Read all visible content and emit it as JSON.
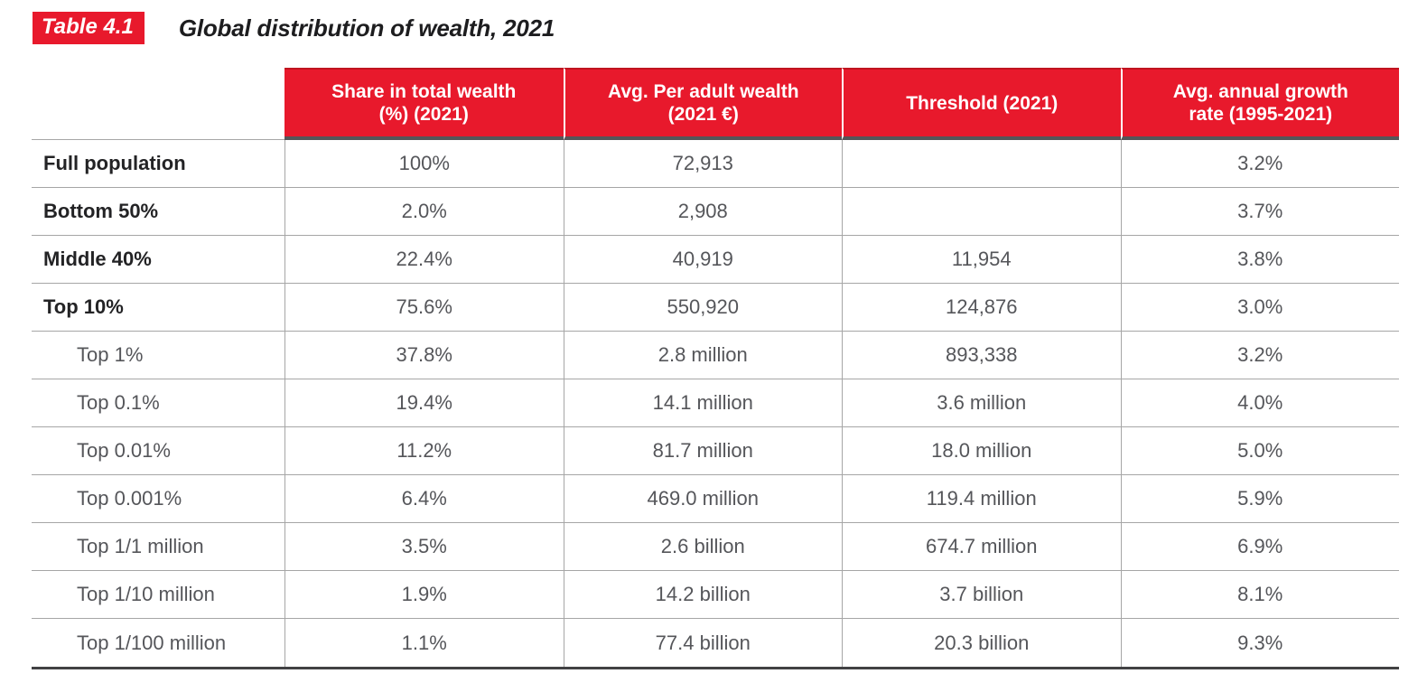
{
  "caption": {
    "badge": "Table 4.1",
    "title": "Global distribution of wealth, 2021"
  },
  "table": {
    "columns": [
      "Share in total wealth\n(%) (2021)",
      "Avg. Per adult wealth\n(2021 €)",
      "Threshold (2021)",
      "Avg. annual growth\nrate (1995-2021)"
    ],
    "rows": [
      {
        "label": "Full population",
        "share": "100%",
        "avg": "72,913",
        "threshold": "",
        "growth": "3.2%"
      },
      {
        "label": "Bottom 50%",
        "share": "2.0%",
        "avg": "2,908",
        "threshold": "",
        "growth": "3.7%"
      },
      {
        "label": "Middle 40%",
        "share": "22.4%",
        "avg": "40,919",
        "threshold": "11,954",
        "growth": "3.8%"
      },
      {
        "label": "Top 10%",
        "share": "75.6%",
        "avg": "550,920",
        "threshold": "124,876",
        "growth": "3.0%"
      },
      {
        "label": "Top 1%",
        "share": "37.8%",
        "avg": "2.8 million",
        "threshold": "893,338",
        "growth": "3.2%"
      },
      {
        "label": "Top 0.1%",
        "share": "19.4%",
        "avg": "14.1 million",
        "threshold": "3.6 million",
        "growth": "4.0%"
      },
      {
        "label": "Top 0.01%",
        "share": "11.2%",
        "avg": "81.7 million",
        "threshold": "18.0 million",
        "growth": "5.0%"
      },
      {
        "label": "Top 0.001%",
        "share": "6.4%",
        "avg": "469.0 million",
        "threshold": "119.4 million",
        "growth": "5.9%"
      },
      {
        "label": "Top 1/1 million",
        "share": "3.5%",
        "avg": "2.6 billion",
        "threshold": "674.7 million",
        "growth": "6.9%"
      },
      {
        "label": "Top 1/10 million",
        "share": "1.9%",
        "avg": "14.2 billion",
        "threshold": "3.7 billion",
        "growth": "8.1%"
      },
      {
        "label": "Top 1/100 million",
        "share": "1.1%",
        "avg": "77.4 billion",
        "threshold": "20.3 billion",
        "growth": "9.3%"
      }
    ]
  },
  "chart_data": {
    "type": "table",
    "title": "Global distribution of wealth, 2021",
    "columns": [
      "",
      "Share in total wealth (%) (2021)",
      "Avg. Per adult wealth (2021 €)",
      "Threshold (2021)",
      "Avg. annual growth rate (1995-2021)"
    ],
    "rows": [
      [
        "Full population",
        "100%",
        "72,913",
        "",
        "3.2%"
      ],
      [
        "Bottom 50%",
        "2.0%",
        "2,908",
        "",
        "3.7%"
      ],
      [
        "Middle 40%",
        "22.4%",
        "40,919",
        "11,954",
        "3.8%"
      ],
      [
        "Top 10%",
        "75.6%",
        "550,920",
        "124,876",
        "3.0%"
      ],
      [
        "Top 1%",
        "37.8%",
        "2.8 million",
        "893,338",
        "3.2%"
      ],
      [
        "Top 0.1%",
        "19.4%",
        "14.1 million",
        "3.6 million",
        "4.0%"
      ],
      [
        "Top 0.01%",
        "11.2%",
        "81.7 million",
        "18.0 million",
        "5.0%"
      ],
      [
        "Top 0.001%",
        "6.4%",
        "469.0 million",
        "119.4 million",
        "5.9%"
      ],
      [
        "Top 1/1 million",
        "3.5%",
        "2.6 billion",
        "674.7 million",
        "6.9%"
      ],
      [
        "Top 1/10 million",
        "1.9%",
        "14.2 billion",
        "3.7 billion",
        "8.1%"
      ],
      [
        "Top 1/100 million",
        "1.1%",
        "77.4 billion",
        "20.3 billion",
        "9.3%"
      ]
    ]
  },
  "colors": {
    "header_red": "#e8192c",
    "header_red_dark_top": "#c0141f",
    "header_bottom_band": "#565659",
    "grid_line": "#a6a6a6",
    "table_bottom_border": "#414143",
    "bold_label_text": "#232325",
    "data_text": "#55565a",
    "header_text": "#ffffff"
  }
}
